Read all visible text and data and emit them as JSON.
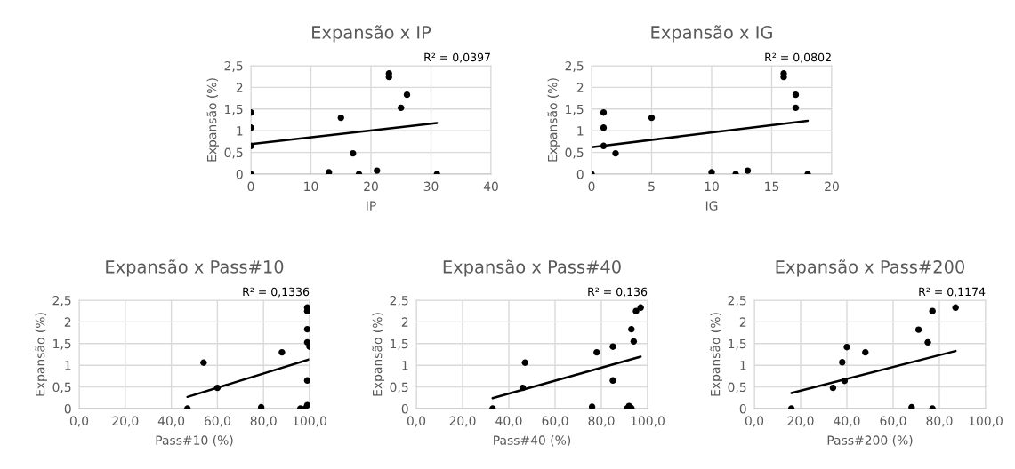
{
  "chart_data": [
    {
      "type": "scatter",
      "title": "Expansão x IP",
      "xlabel": "IP",
      "ylabel": "Expansão (%)",
      "annotations": [
        "R² = 0,0397"
      ],
      "grid": true,
      "xlim": [
        0,
        40
      ],
      "xticks": [
        0,
        10,
        20,
        30,
        40
      ],
      "ylim": [
        0,
        2.5
      ],
      "yticks": [
        0,
        {
          "value": 0.5,
          "label": "0,5"
        },
        1,
        {
          "value": 1.5,
          "label": "1,5"
        },
        2,
        {
          "value": 2.5,
          "label": "2,5"
        }
      ],
      "series": [
        {
          "type": "scatter",
          "marker": "circle",
          "color": "#000000",
          "x": [
            0,
            0,
            0,
            0,
            13,
            15,
            17,
            18,
            21,
            23,
            23,
            25,
            26,
            31
          ],
          "values": [
            1.42,
            1.07,
            0.65,
            0,
            0.04,
            1.3,
            0.48,
            0,
            0.08,
            2.32,
            2.24,
            1.53,
            1.83,
            0
          ]
        },
        {
          "type": "line",
          "marker": "none",
          "color": "#000000",
          "x": [
            0,
            31
          ],
          "values": [
            0.69,
            1.18
          ]
        }
      ]
    },
    {
      "type": "scatter",
      "title": "Expansão x IG",
      "xlabel": "IG",
      "ylabel": "Expansão (%)",
      "annotations": [
        "R² = 0,0802"
      ],
      "grid": true,
      "xlim": [
        0,
        20
      ],
      "xticks": [
        0,
        5,
        10,
        15,
        20
      ],
      "ylim": [
        0,
        2.5
      ],
      "yticks": [
        0,
        {
          "value": 0.5,
          "label": "0,5"
        },
        1,
        {
          "value": 1.5,
          "label": "1,5"
        },
        2,
        {
          "value": 2.5,
          "label": "2,5"
        }
      ],
      "series": [
        {
          "type": "scatter",
          "marker": "circle",
          "color": "#000000",
          "x": [
            0,
            1,
            1,
            1,
            2,
            5,
            10,
            12,
            13,
            16,
            16,
            17,
            17,
            18
          ],
          "values": [
            0,
            1.42,
            1.07,
            0.65,
            0.48,
            1.3,
            0.04,
            0,
            0.08,
            2.32,
            2.24,
            1.83,
            1.53,
            0
          ]
        },
        {
          "type": "line",
          "marker": "none",
          "color": "#000000",
          "x": [
            0,
            18
          ],
          "values": [
            0.62,
            1.23
          ]
        }
      ]
    },
    {
      "type": "scatter",
      "title": "Expansão x Pass#10",
      "xlabel": "Pass#10 (%)",
      "ylabel": "Expansão (%)",
      "annotations": [
        "R² = 0,1336"
      ],
      "grid": true,
      "xlim": [
        0,
        100
      ],
      "xticks": [
        {
          "value": 0,
          "label": "0,0"
        },
        {
          "value": 20,
          "label": "20,0"
        },
        {
          "value": 40,
          "label": "40,0"
        },
        {
          "value": 60,
          "label": "60,0"
        },
        {
          "value": 80,
          "label": "80,0"
        },
        {
          "value": 100,
          "label": "100,0"
        }
      ],
      "ylim": [
        0,
        2.5
      ],
      "yticks": [
        0,
        {
          "value": 0.5,
          "label": "0,5"
        },
        1,
        {
          "value": 1.5,
          "label": "1,5"
        },
        2,
        {
          "value": 2.5,
          "label": "2,5"
        }
      ],
      "series": [
        {
          "type": "scatter",
          "marker": "circle",
          "color": "#000000",
          "x": [
            47,
            54,
            60,
            79,
            88,
            96,
            98,
            99,
            99,
            99,
            99,
            100,
            99,
            99
          ],
          "values": [
            0,
            1.06,
            0.48,
            0.03,
            1.3,
            0,
            0,
            2.33,
            2.25,
            1.83,
            1.53,
            1.43,
            0.65,
            0.08
          ]
        },
        {
          "type": "line",
          "marker": "none",
          "color": "#000000",
          "x": [
            47,
            100
          ],
          "values": [
            0.27,
            1.14
          ]
        }
      ]
    },
    {
      "type": "scatter",
      "title": "Expansão x Pass#40",
      "xlabel": "Pass#40 (%)",
      "ylabel": "Expansão (%)",
      "annotations": [
        "R² = 0,136"
      ],
      "grid": true,
      "xlim": [
        0,
        100
      ],
      "xticks": [
        {
          "value": 0,
          "label": "0,0"
        },
        {
          "value": 20,
          "label": "20,0"
        },
        {
          "value": 40,
          "label": "40,0"
        },
        {
          "value": 60,
          "label": "60,0"
        },
        {
          "value": 80,
          "label": "80,0"
        },
        {
          "value": 100,
          "label": "100,0"
        }
      ],
      "ylim": [
        0,
        2.5
      ],
      "yticks": [
        0,
        {
          "value": 0.5,
          "label": "0,5"
        },
        1,
        {
          "value": 1.5,
          "label": "1,5"
        },
        2,
        {
          "value": 2.5,
          "label": "2,5"
        }
      ],
      "series": [
        {
          "type": "scatter",
          "marker": "circle",
          "color": "#000000",
          "x": [
            33,
            46,
            47,
            76,
            78,
            85,
            85,
            91,
            92,
            93,
            93,
            94,
            95,
            97
          ],
          "values": [
            0,
            0.48,
            1.06,
            0.04,
            1.3,
            1.43,
            0.65,
            0,
            0.06,
            0.01,
            1.83,
            1.55,
            2.25,
            2.33
          ]
        },
        {
          "type": "line",
          "marker": "none",
          "color": "#000000",
          "x": [
            33,
            97
          ],
          "values": [
            0.24,
            1.2
          ]
        }
      ]
    },
    {
      "type": "scatter",
      "title": "Expansão x Pass#200",
      "xlabel": "Pass#200 (%)",
      "ylabel": "Expansão (%)",
      "annotations": [
        "R² = 0,1174"
      ],
      "grid": true,
      "xlim": [
        0,
        100
      ],
      "xticks": [
        {
          "value": 0,
          "label": "0,0"
        },
        {
          "value": 20,
          "label": "20,0"
        },
        {
          "value": 40,
          "label": "40,0"
        },
        {
          "value": 60,
          "label": "60,0"
        },
        {
          "value": 80,
          "label": "80,0"
        },
        {
          "value": 100,
          "label": "100,0"
        }
      ],
      "ylim": [
        0,
        2.5
      ],
      "yticks": [
        0,
        {
          "value": 0.5,
          "label": "0,5"
        },
        1,
        {
          "value": 1.5,
          "label": "1,5"
        },
        2,
        {
          "value": 2.5,
          "label": "2,5"
        }
      ],
      "series": [
        {
          "type": "scatter",
          "marker": "circle",
          "color": "#000000",
          "x": [
            16,
            34,
            38,
            39,
            40,
            48,
            68,
            71,
            75,
            77,
            77,
            87
          ],
          "values": [
            0,
            0.48,
            1.07,
            0.64,
            1.42,
            1.3,
            0.03,
            1.82,
            1.53,
            2.25,
            0,
            2.33
          ]
        },
        {
          "type": "line",
          "marker": "none",
          "color": "#000000",
          "x": [
            16,
            87
          ],
          "values": [
            0.36,
            1.33
          ]
        }
      ]
    }
  ]
}
